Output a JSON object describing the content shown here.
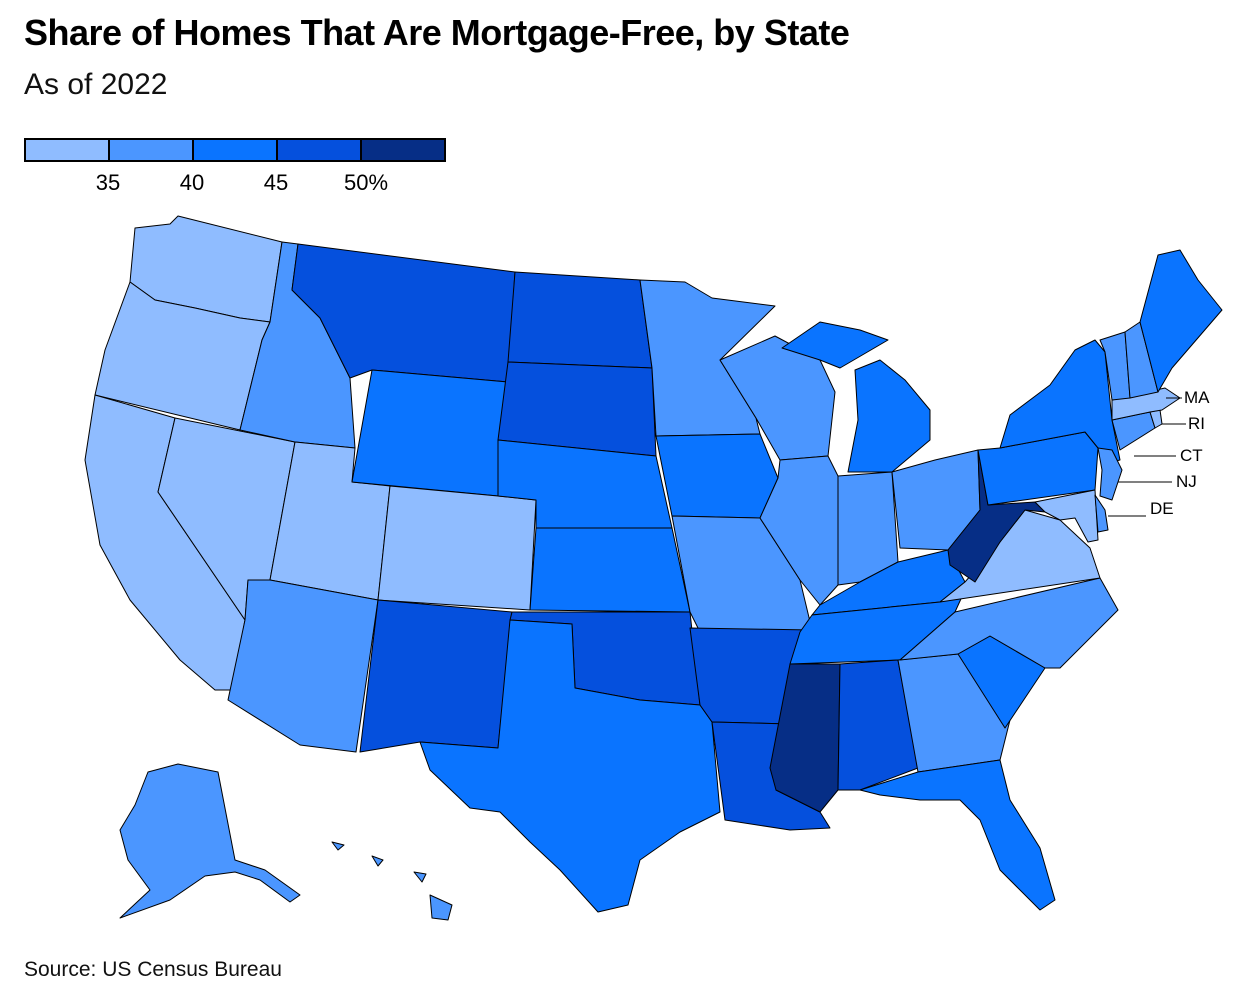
{
  "title": "Share of Homes That Are Mortgage-Free, by State",
  "subtitle": "As of 2022",
  "source": "Source: US Census Bureau",
  "legend": {
    "bins": [
      {
        "color": "#8fbcff"
      },
      {
        "color": "#4b96ff"
      },
      {
        "color": "#0a74ff"
      },
      {
        "color": "#0550dd"
      },
      {
        "color": "#062e86"
      }
    ],
    "ticks": [
      "35",
      "40",
      "45",
      "50%"
    ]
  },
  "callouts": [
    "MA",
    "RI",
    "CT",
    "NJ",
    "DE"
  ],
  "states": {
    "WA": "bin1",
    "OR": "bin1",
    "CA": "bin1",
    "NV": "bin1",
    "UT": "bin1",
    "CO": "bin1",
    "ID": "bin2",
    "AZ": "bin2",
    "MN": "bin2",
    "WI": "bin2",
    "IL": "bin2",
    "IN": "bin2",
    "OH": "bin2",
    "MO": "bin2",
    "GA": "bin2",
    "NC": "bin2",
    "AK": "bin2",
    "HI": "bin2",
    "VT": "bin2",
    "NH": "bin2",
    "NJ": "bin2",
    "MD": "bin1",
    "VA": "bin1",
    "MA": "bin1",
    "RI": "bin1",
    "CT": "bin2",
    "DE": "bin2",
    "WY": "bin3",
    "NE": "bin3",
    "KS": "bin3",
    "TX": "bin3",
    "IA": "bin3",
    "MI": "bin3",
    "KY": "bin3",
    "TN": "bin3",
    "SC": "bin3",
    "FL": "bin3",
    "PA": "bin3",
    "NY": "bin3",
    "ME": "bin3",
    "MT": "bin4",
    "ND": "bin4",
    "SD": "bin4",
    "NM": "bin4",
    "OK": "bin4",
    "AR": "bin4",
    "LA": "bin4",
    "AL": "bin4",
    "MS": "bin5",
    "WV": "bin5"
  }
}
